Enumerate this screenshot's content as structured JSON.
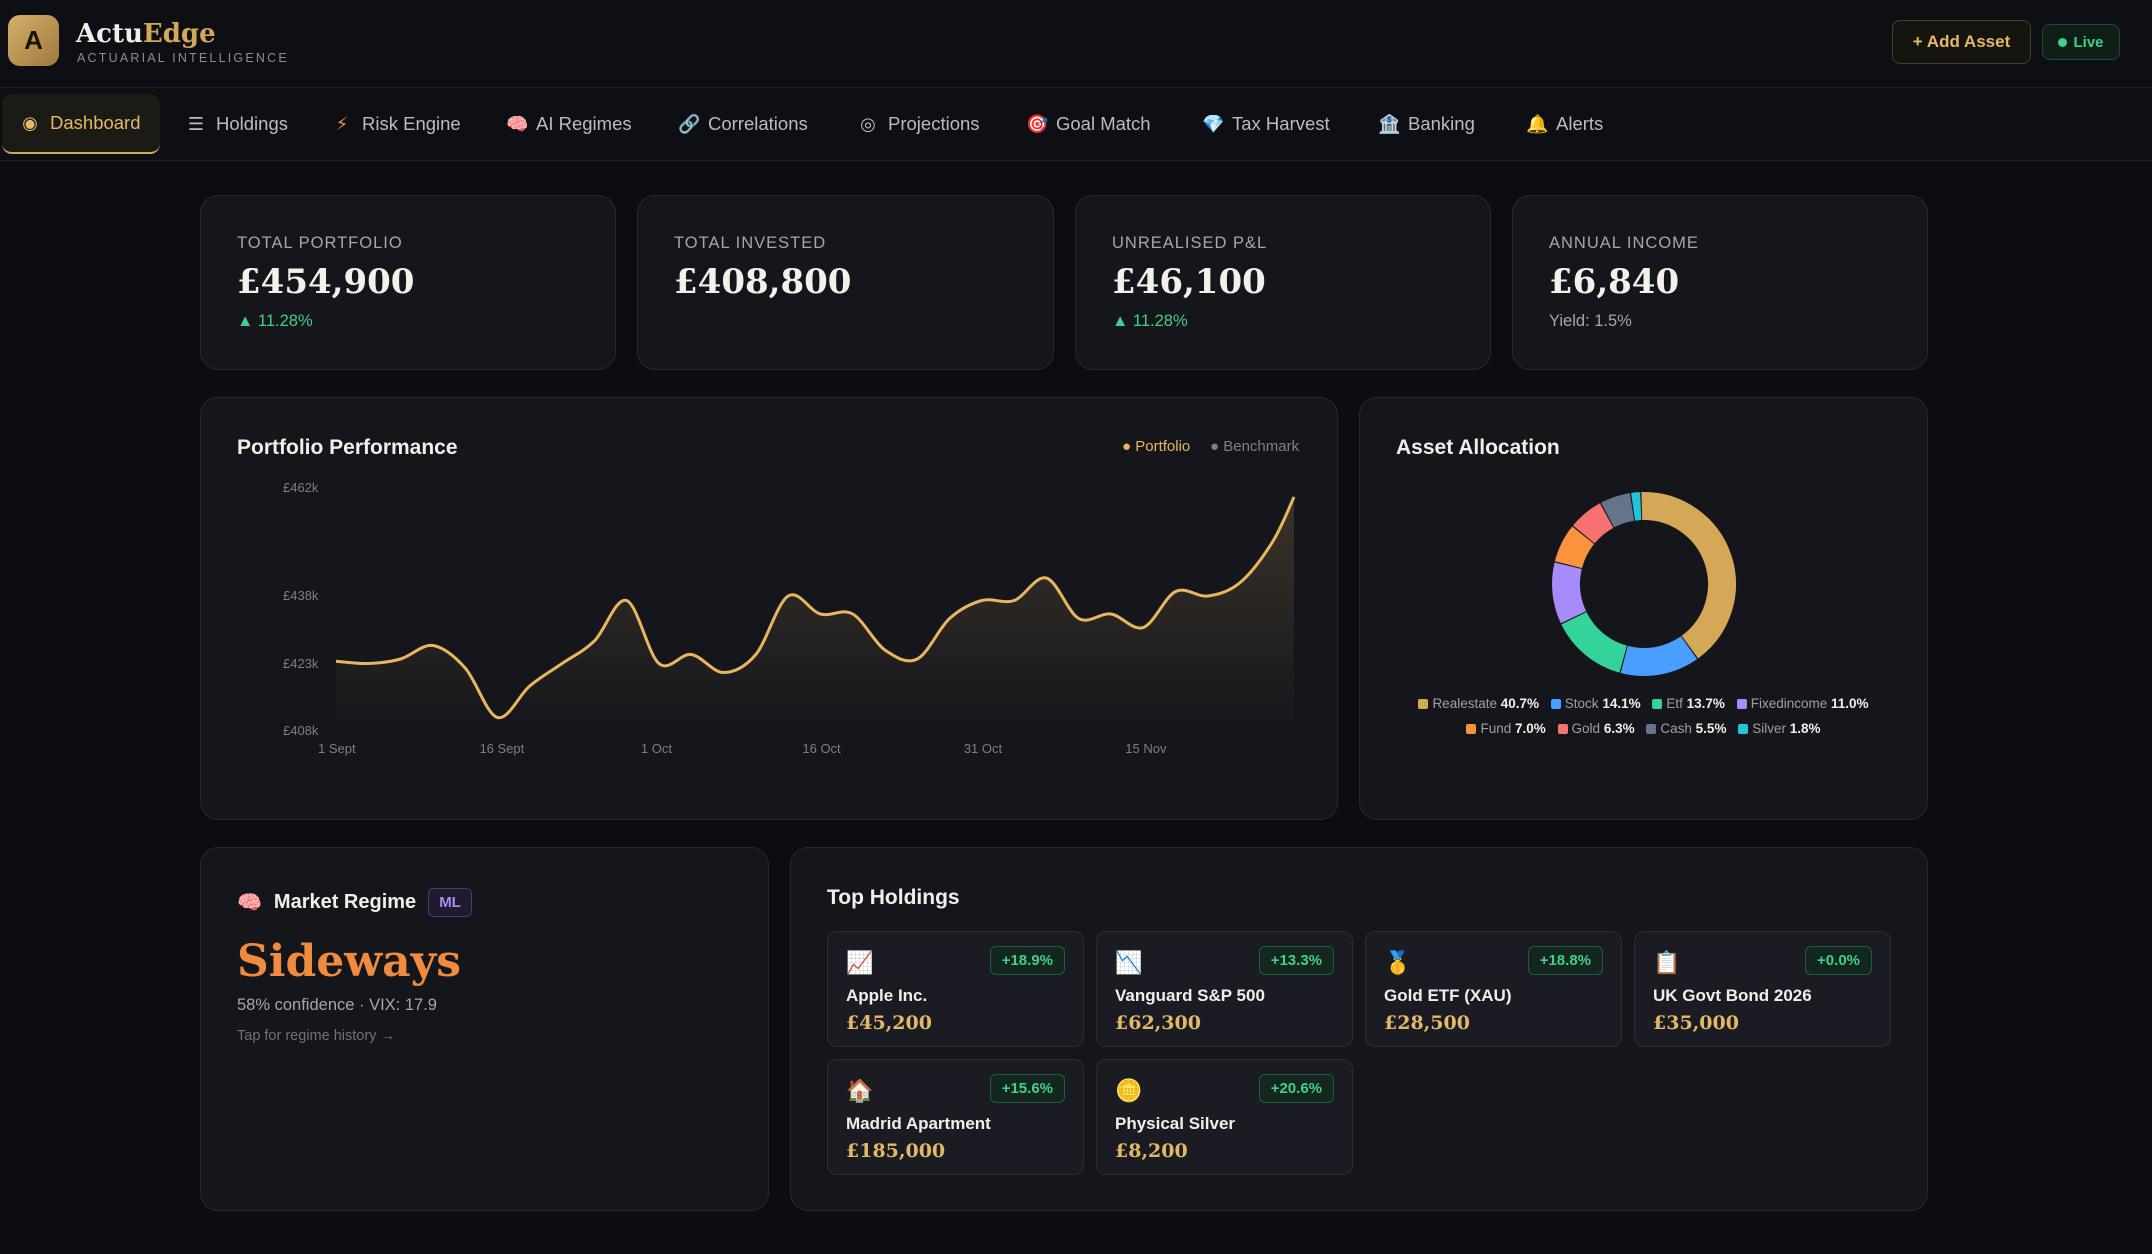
{
  "header": {
    "logo_letter": "A",
    "brand_first": "Actu",
    "brand_second": "Edge",
    "brand_subtitle": "ACTUARIAL INTELLIGENCE",
    "add_asset_label": "+ Add Asset",
    "live_label": "Live"
  },
  "nav": {
    "tabs": [
      {
        "label": "Dashboard",
        "icon": "◉",
        "active": true
      },
      {
        "label": "Holdings",
        "icon": "☰"
      },
      {
        "label": "Risk Engine",
        "icon": "⚡"
      },
      {
        "label": "AI Regimes",
        "icon": "🧠"
      },
      {
        "label": "Correlations",
        "icon": "🔗"
      },
      {
        "label": "Projections",
        "icon": "◎"
      },
      {
        "label": "Goal Match",
        "icon": "🎯"
      },
      {
        "label": "Tax Harvest",
        "icon": "💎"
      },
      {
        "label": "Banking",
        "icon": "🏦"
      },
      {
        "label": "Alerts",
        "icon": "🔔"
      }
    ]
  },
  "kpis": [
    {
      "label": "TOTAL PORTFOLIO",
      "value": "£454,900",
      "sub": "▲ 11.28%"
    },
    {
      "label": "TOTAL INVESTED",
      "value": "£408,800",
      "sub": ""
    },
    {
      "label": "UNREALISED P&L",
      "value": "£46,100",
      "sub": "▲ 11.28%"
    },
    {
      "label": "ANNUAL INCOME",
      "value": "£6,840",
      "sub": "Yield: 1.5%"
    }
  ],
  "performance": {
    "title": "Portfolio Performance",
    "legend_portfolio": "● Portfolio",
    "legend_benchmark": "● Benchmark"
  },
  "chart_data": {
    "type": "area",
    "title": "Portfolio Performance",
    "y_tick_labels": [
      "£462k",
      "£438k",
      "£423k",
      "£408k"
    ],
    "y_ticks": [
      462,
      438,
      423,
      408
    ],
    "ylim": [
      408,
      462
    ],
    "x_tick_labels": [
      "1 Sept",
      "16 Sept",
      "1 Oct",
      "16 Oct",
      "31 Oct",
      "15 Nov"
    ],
    "x_ticks": [
      0,
      15,
      30,
      45,
      60,
      75
    ],
    "xlim": [
      0,
      89
    ],
    "series": [
      {
        "name": "Portfolio",
        "color": "#e8b660",
        "x": [
          0,
          3,
          6,
          9,
          12,
          15,
          18,
          21,
          24,
          27,
          30,
          33,
          36,
          39,
          42,
          45,
          48,
          51,
          54,
          57,
          60,
          63,
          66,
          69,
          72,
          75,
          78,
          81,
          84,
          87,
          89
        ],
        "values": [
          423.5,
          423,
          424,
          427,
          422,
          411,
          418,
          423,
          428,
          437,
          423,
          425,
          421,
          425,
          438,
          434,
          434,
          426,
          424,
          433,
          437,
          437,
          442,
          433,
          434,
          431,
          439,
          438,
          441,
          450,
          460
        ]
      }
    ]
  },
  "allocation": {
    "title": "Asset Allocation",
    "slices": [
      {
        "name": "Realestate",
        "pct": "40.7%",
        "value": 40.7,
        "color": "#d4a857"
      },
      {
        "name": "Stock",
        "pct": "14.1%",
        "value": 14.1,
        "color": "#4a9eff"
      },
      {
        "name": "Etf",
        "pct": "13.7%",
        "value": 13.7,
        "color": "#34d399"
      },
      {
        "name": "Fixedincome",
        "pct": "11.0%",
        "value": 11.0,
        "color": "#a78bfa"
      },
      {
        "name": "Fund",
        "pct": "7.0%",
        "value": 7.0,
        "color": "#fb923c"
      },
      {
        "name": "Gold",
        "pct": "6.3%",
        "value": 6.3,
        "color": "#f87171"
      },
      {
        "name": "Cash",
        "pct": "5.5%",
        "value": 5.5,
        "color": "#64748b"
      },
      {
        "name": "Silver",
        "pct": "1.8%",
        "value": 1.8,
        "color": "#22c5d8"
      }
    ]
  },
  "regime": {
    "title": "Market Regime",
    "badge": "ML",
    "value": "Sideways",
    "sub": "58% confidence · VIX: 17.9",
    "link": "Tap for regime history →"
  },
  "holdings": {
    "title": "Top Holdings",
    "items": [
      {
        "icon": "📈",
        "name": "Apple Inc.",
        "value": "£45,200",
        "change": "+18.9%"
      },
      {
        "icon": "📉",
        "name": "Vanguard S&P 500",
        "value": "£62,300",
        "change": "+13.3%"
      },
      {
        "icon": "🥇",
        "name": "Gold ETF (XAU)",
        "value": "£28,500",
        "change": "+18.8%"
      },
      {
        "icon": "📋",
        "name": "UK Govt Bond 2026",
        "value": "£35,000",
        "change": "+0.0%"
      },
      {
        "icon": "🏠",
        "name": "Madrid Apartment",
        "value": "£185,000",
        "change": "+15.6%"
      },
      {
        "icon": "🪙",
        "name": "Physical Silver",
        "value": "£8,200",
        "change": "+20.6%"
      }
    ]
  }
}
